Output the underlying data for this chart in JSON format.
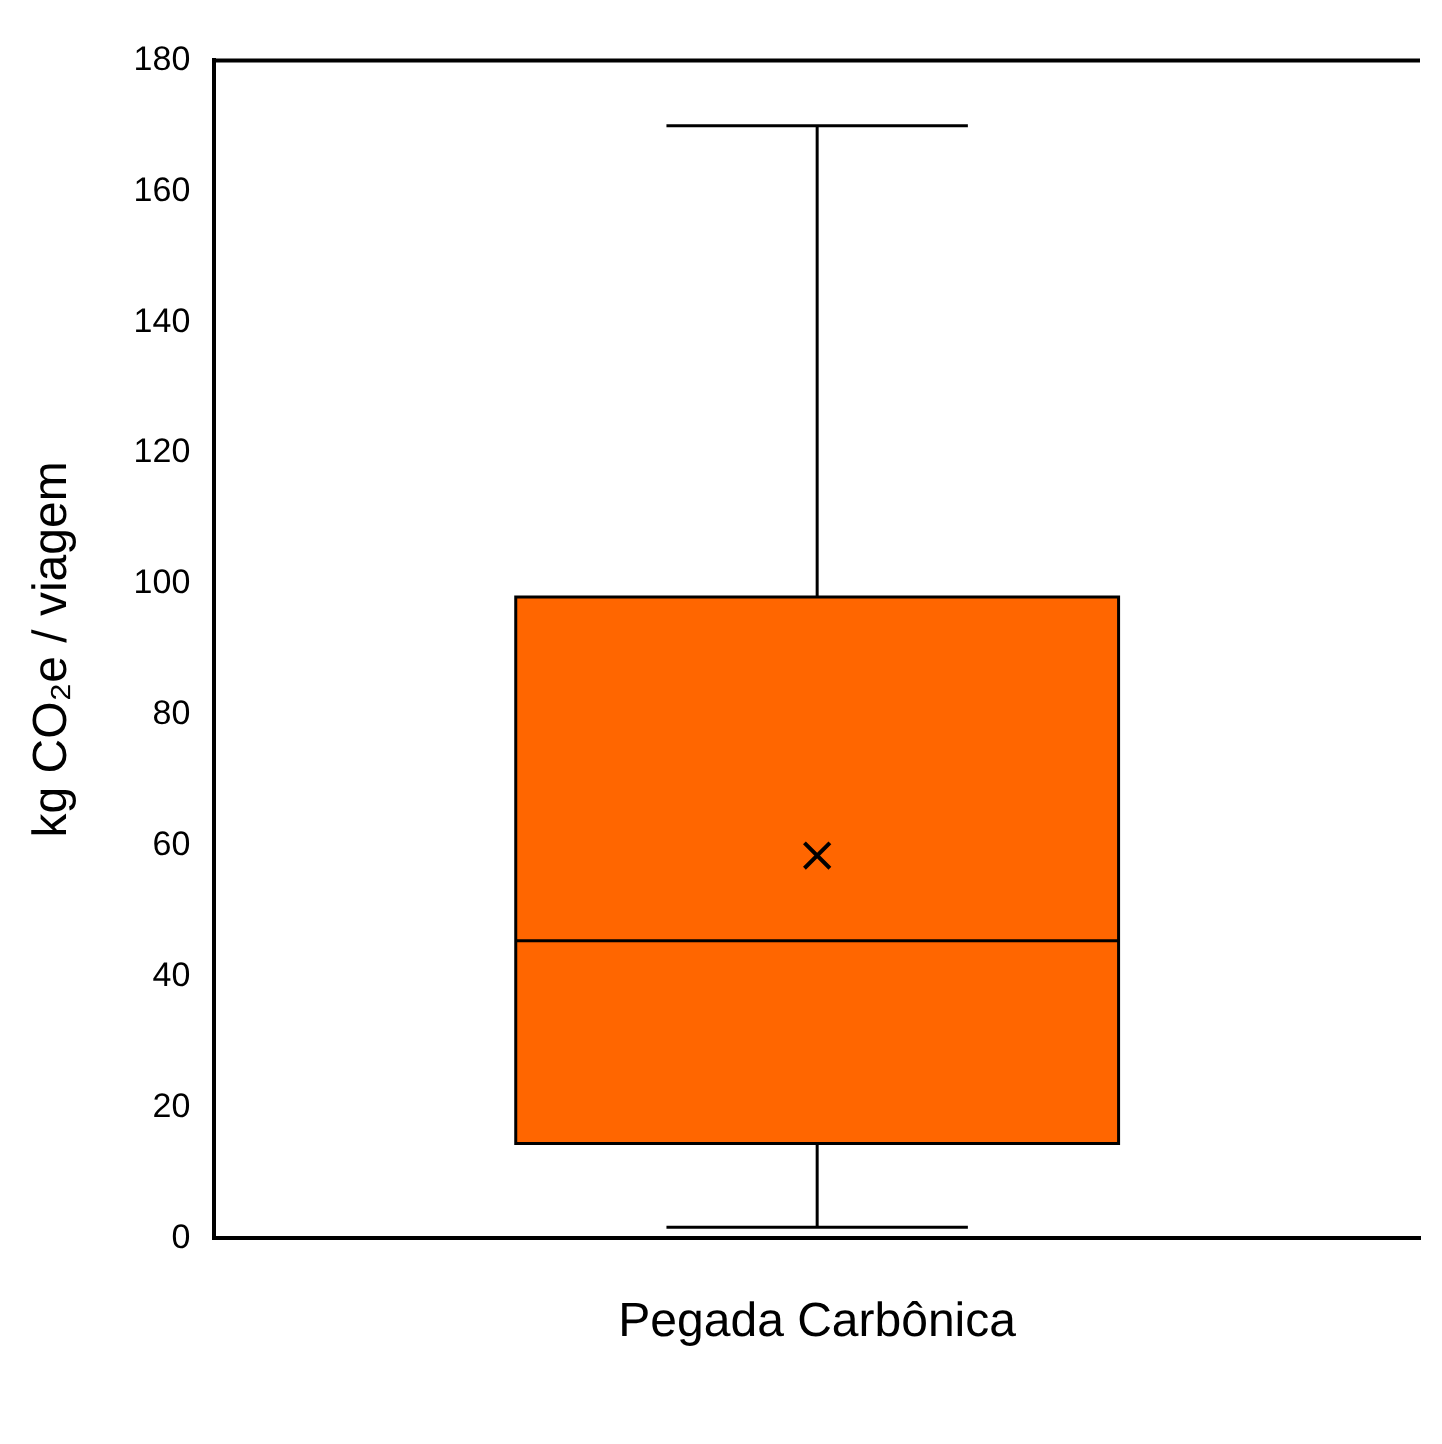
{
  "chart_data": {
    "type": "box",
    "ylabel": "kg CO₂e / viagem",
    "categories": [
      "Pegada Carbônica"
    ],
    "color": "#ff6600",
    "boxes": [
      {
        "low": 1.7,
        "q1": 14.5,
        "median": 45.5,
        "q3": 98,
        "high": 170,
        "mean": 58.5
      }
    ],
    "ylim": [
      0,
      180
    ],
    "yticks": [
      0,
      20,
      40,
      60,
      80,
      100,
      120,
      140,
      160,
      180
    ]
  }
}
